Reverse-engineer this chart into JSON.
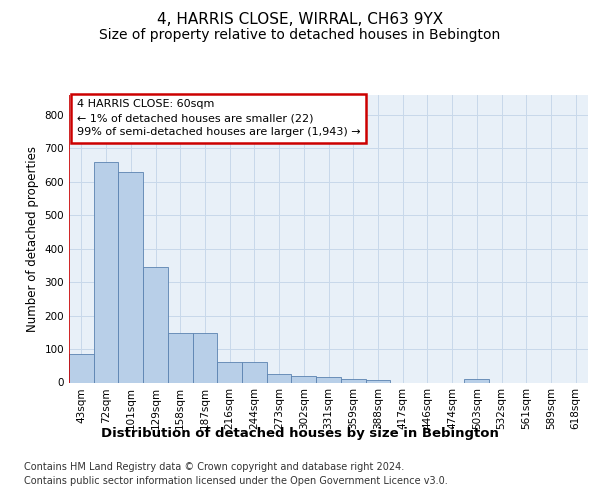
{
  "title": "4, HARRIS CLOSE, WIRRAL, CH63 9YX",
  "subtitle": "Size of property relative to detached houses in Bebington",
  "xlabel": "Distribution of detached houses by size in Bebington",
  "ylabel": "Number of detached properties",
  "categories": [
    "43sqm",
    "72sqm",
    "101sqm",
    "129sqm",
    "158sqm",
    "187sqm",
    "216sqm",
    "244sqm",
    "273sqm",
    "302sqm",
    "331sqm",
    "359sqm",
    "388sqm",
    "417sqm",
    "446sqm",
    "474sqm",
    "503sqm",
    "532sqm",
    "561sqm",
    "589sqm",
    "618sqm"
  ],
  "values": [
    85,
    660,
    630,
    345,
    147,
    147,
    60,
    60,
    25,
    20,
    17,
    11,
    7,
    0,
    0,
    0,
    9,
    0,
    0,
    0,
    0
  ],
  "bar_color": "#b8cfe8",
  "bar_edge_color": "#5a82b0",
  "annotation_text": "4 HARRIS CLOSE: 60sqm\n← 1% of detached houses are smaller (22)\n99% of semi-detached houses are larger (1,943) →",
  "annotation_box_color": "#ffffff",
  "annotation_box_edge_color": "#cc0000",
  "red_line_x": -0.5,
  "ylim": [
    0,
    860
  ],
  "yticks": [
    0,
    100,
    200,
    300,
    400,
    500,
    600,
    700,
    800
  ],
  "grid_color": "#c8d8ea",
  "plot_bg_color": "#e8f0f8",
  "fig_bg_color": "#ffffff",
  "footer1": "Contains HM Land Registry data © Crown copyright and database right 2024.",
  "footer2": "Contains public sector information licensed under the Open Government Licence v3.0.",
  "title_fontsize": 11,
  "subtitle_fontsize": 10,
  "xlabel_fontsize": 9.5,
  "ylabel_fontsize": 8.5,
  "tick_fontsize": 7.5,
  "footer_fontsize": 7,
  "ann_fontsize": 8
}
